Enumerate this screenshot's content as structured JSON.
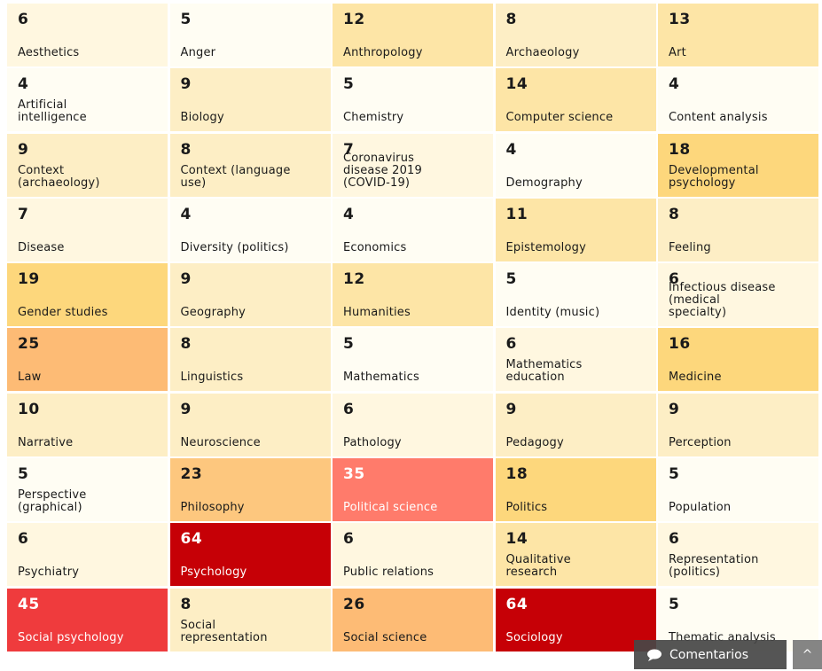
{
  "colors": {
    "c1": "#fffdf3",
    "c2": "#fff7e0",
    "c3": "#fdeec5",
    "c4": "#fde5a6",
    "c5": "#fdd77c",
    "c6": "#fdc77e",
    "c7": "#fdbb75",
    "c8": "#ff7b6b",
    "c9": "#ef3b3d",
    "c10": "#c60006"
  },
  "cells": [
    {
      "count": "6",
      "label": "Aesthetics",
      "color": "c2"
    },
    {
      "count": "5",
      "label": "Anger",
      "color": "c1"
    },
    {
      "count": "12",
      "label": "Anthropology",
      "color": "c4"
    },
    {
      "count": "8",
      "label": "Archaeology",
      "color": "c3"
    },
    {
      "count": "13",
      "label": "Art",
      "color": "c4"
    },
    {
      "count": "4",
      "label": "Artificial\nintelligence",
      "color": "c1"
    },
    {
      "count": "9",
      "label": "Biology",
      "color": "c3"
    },
    {
      "count": "5",
      "label": "Chemistry",
      "color": "c1"
    },
    {
      "count": "14",
      "label": "Computer science",
      "color": "c4"
    },
    {
      "count": "4",
      "label": "Content analysis",
      "color": "c1"
    },
    {
      "count": "9",
      "label": "Context\n(archaeology)",
      "color": "c3"
    },
    {
      "count": "8",
      "label": "Context (language\nuse)",
      "color": "c3"
    },
    {
      "count": "7",
      "label": "Coronavirus\ndisease 2019\n(COVID-19)",
      "color": "c2"
    },
    {
      "count": "4",
      "label": "Demography",
      "color": "c1"
    },
    {
      "count": "18",
      "label": "Developmental\npsychology",
      "color": "c5"
    },
    {
      "count": "7",
      "label": "Disease",
      "color": "c2"
    },
    {
      "count": "4",
      "label": "Diversity (politics)",
      "color": "c1"
    },
    {
      "count": "4",
      "label": "Economics",
      "color": "c1"
    },
    {
      "count": "11",
      "label": "Epistemology",
      "color": "c4"
    },
    {
      "count": "8",
      "label": "Feeling",
      "color": "c3"
    },
    {
      "count": "19",
      "label": "Gender studies",
      "color": "c5"
    },
    {
      "count": "9",
      "label": "Geography",
      "color": "c3"
    },
    {
      "count": "12",
      "label": "Humanities",
      "color": "c4"
    },
    {
      "count": "5",
      "label": "Identity (music)",
      "color": "c1"
    },
    {
      "count": "6",
      "label": "Infectious disease\n(medical\nspecialty)",
      "color": "c2"
    },
    {
      "count": "25",
      "label": "Law",
      "color": "c7"
    },
    {
      "count": "8",
      "label": "Linguistics",
      "color": "c3"
    },
    {
      "count": "5",
      "label": "Mathematics",
      "color": "c1"
    },
    {
      "count": "6",
      "label": "Mathematics\neducation",
      "color": "c2"
    },
    {
      "count": "16",
      "label": "Medicine",
      "color": "c5"
    },
    {
      "count": "10",
      "label": "Narrative",
      "color": "c3"
    },
    {
      "count": "9",
      "label": "Neuroscience",
      "color": "c3"
    },
    {
      "count": "6",
      "label": "Pathology",
      "color": "c2"
    },
    {
      "count": "9",
      "label": "Pedagogy",
      "color": "c3"
    },
    {
      "count": "9",
      "label": "Perception",
      "color": "c3"
    },
    {
      "count": "5",
      "label": "Perspective\n(graphical)",
      "color": "c1"
    },
    {
      "count": "23",
      "label": "Philosophy",
      "color": "c6"
    },
    {
      "count": "35",
      "label": "Political science",
      "color": "c8"
    },
    {
      "count": "18",
      "label": "Politics",
      "color": "c5"
    },
    {
      "count": "5",
      "label": "Population",
      "color": "c1"
    },
    {
      "count": "6",
      "label": "Psychiatry",
      "color": "c2"
    },
    {
      "count": "64",
      "label": "Psychology",
      "color": "c10"
    },
    {
      "count": "6",
      "label": "Public relations",
      "color": "c2"
    },
    {
      "count": "14",
      "label": "Qualitative\nresearch",
      "color": "c4"
    },
    {
      "count": "6",
      "label": "Representation\n(politics)",
      "color": "c2"
    },
    {
      "count": "45",
      "label": "Social psychology",
      "color": "c9"
    },
    {
      "count": "8",
      "label": "Social\nrepresentation",
      "color": "c3"
    },
    {
      "count": "26",
      "label": "Social science",
      "color": "c7"
    },
    {
      "count": "64",
      "label": "Sociology",
      "color": "c10"
    },
    {
      "count": "5",
      "label": "Thematic analysis",
      "color": "c1"
    }
  ],
  "overlay": {
    "comment_label": "Comentarios",
    "comment_icon": "speech-bubble-icon",
    "side_icon": "chevron-up-icon",
    "side_glyph": "^"
  }
}
